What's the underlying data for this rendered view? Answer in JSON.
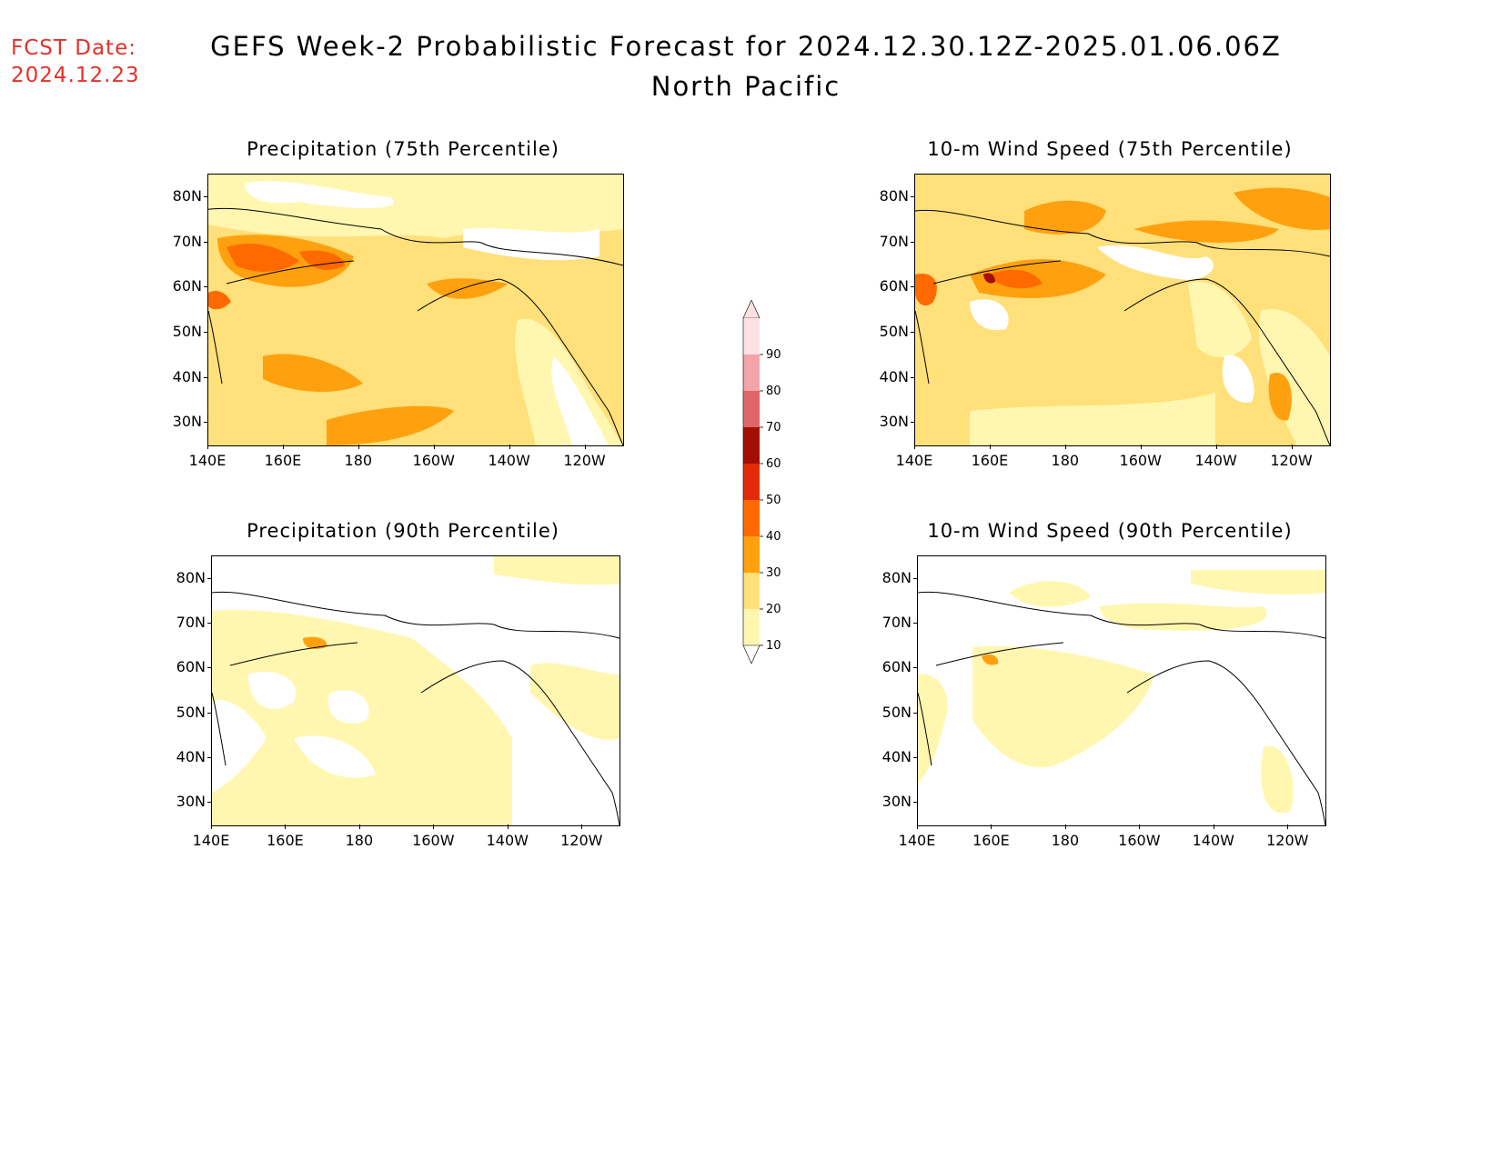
{
  "header": {
    "fcst_label": "FCST Date:",
    "fcst_date": "2024.12.23",
    "title_line1": "GEFS Week-2 Probabilistic Forecast for 2024.12.30.12Z-2025.01.06.06Z",
    "title_line2": "North Pacific"
  },
  "axes": {
    "y_ticks": [
      "80N",
      "70N",
      "60N",
      "50N",
      "40N",
      "30N"
    ],
    "x_ticks": [
      "140E",
      "160E",
      "180",
      "160W",
      "140W",
      "120W"
    ]
  },
  "panels": [
    {
      "id": "precip-75",
      "title": "Precipitation (75th Percentile)"
    },
    {
      "id": "wind-75",
      "title": "10-m Wind Speed (75th Percentile)"
    },
    {
      "id": "precip-90",
      "title": "Precipitation (90th Percentile)"
    },
    {
      "id": "wind-90",
      "title": "10-m Wind Speed (90th Percentile)"
    }
  ],
  "colorbar": {
    "labels": [
      "90",
      "80",
      "70",
      "60",
      "50",
      "40",
      "30",
      "20",
      "10"
    ],
    "colors": [
      "#fde0e2",
      "#f4a3a8",
      "#e06666",
      "#a30f06",
      "#e32b0a",
      "#ff6a00",
      "#ffa10f",
      "#ffe07a",
      "#fff7b0"
    ]
  }
}
